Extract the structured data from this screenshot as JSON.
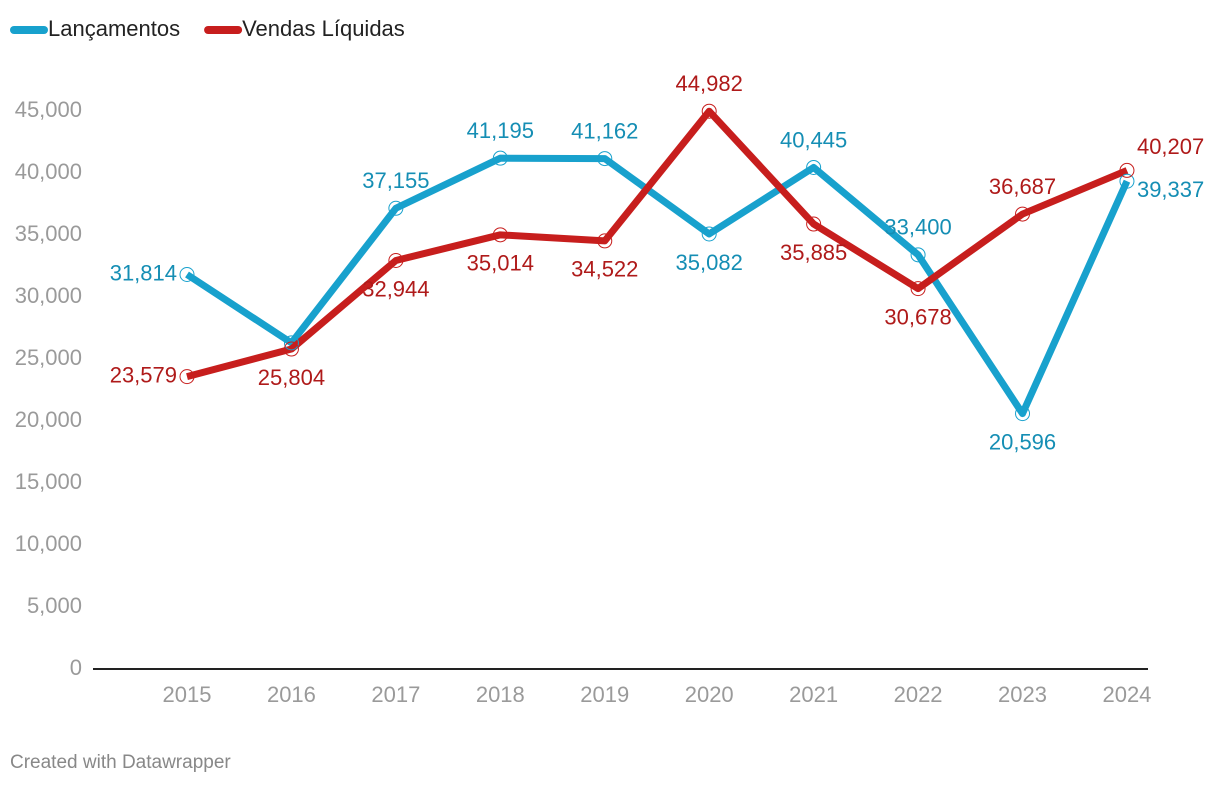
{
  "chart_data": {
    "type": "line",
    "categories": [
      "2015",
      "2016",
      "2017",
      "2018",
      "2019",
      "2020",
      "2021",
      "2022",
      "2023",
      "2024"
    ],
    "series": [
      {
        "name": "Lançamentos",
        "color": "#18a1cd",
        "values": [
          31814,
          26300,
          37155,
          41195,
          41162,
          35082,
          40445,
          33400,
          20596,
          39337
        ],
        "value_labels": [
          "31,814",
          null,
          "37,155",
          "41,195",
          "41,162",
          "35,082",
          "40,445",
          "33,400",
          "20,596",
          "39,337"
        ]
      },
      {
        "name": "Vendas Líquidas",
        "color": "#c71e1d",
        "values": [
          23579,
          25804,
          32944,
          35014,
          34522,
          44982,
          35885,
          30678,
          36687,
          40207
        ],
        "value_labels": [
          "23,579",
          "25,804",
          "32,944",
          "35,014",
          "34,522",
          "44,982",
          "35,885",
          "30,678",
          "36,687",
          "40,207"
        ]
      }
    ],
    "ylim": [
      0,
      45000
    ],
    "yticks": [
      0,
      {
        "value": 5000,
        "label": "5,000"
      },
      {
        "value": 10000,
        "label": "10,000"
      },
      {
        "value": 15000,
        "label": "15,000"
      },
      {
        "value": 20000,
        "label": "20,000"
      },
      {
        "value": 25000,
        "label": "25,000"
      },
      {
        "value": 30000,
        "label": "30,000"
      },
      {
        "value": 35000,
        "label": "35,000"
      },
      {
        "value": 40000,
        "label": "40,000"
      },
      {
        "value": 45000,
        "label": "45,000"
      }
    ],
    "grid": false,
    "legend": "top-left",
    "credit": "Created with Datawrapper"
  }
}
